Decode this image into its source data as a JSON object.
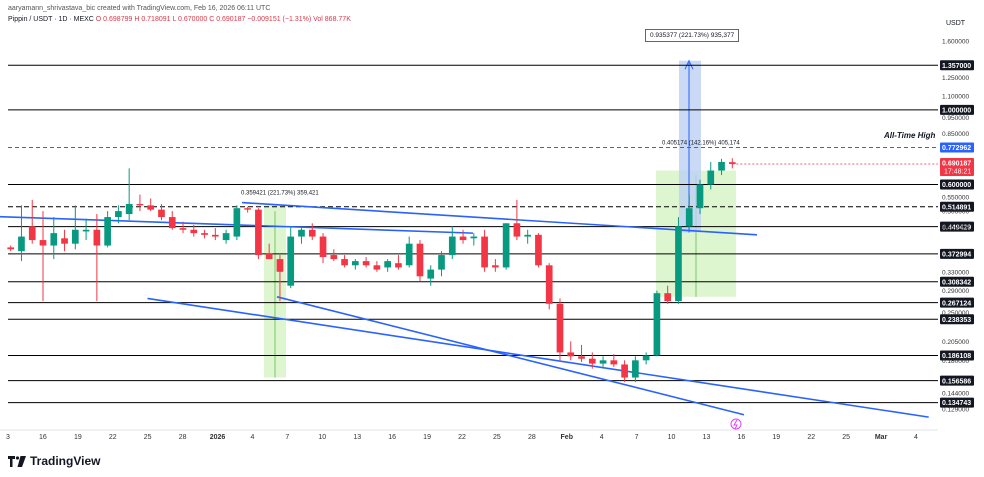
{
  "header": {
    "credit": "aaryamann_shrivastava_bic created with TradingView.com, Feb 16, 2026 06:11 UTC",
    "symbol": "Pippin / USDT · 1D · MEXC",
    "ohlc_text": "O 0.698799 H 0.718091 L 0.670000 C 0.690187 −0.009151 (−1.31%)",
    "volume_text": "Vol 868.77K"
  },
  "currency": "USDT",
  "brand": "TradingView",
  "annotations": {
    "all_time_high": "All-Time High",
    "measure_top": "0.935377 (221.73%) 935,377",
    "measure_mid": "0.405174 (142.16%) 405,174",
    "measure_left": "0.359421 (221.73%) 359,421"
  },
  "colors": {
    "up": "#089981",
    "down": "#f23645",
    "trendline": "#2962ff",
    "level": "#000000",
    "ath": "#2962ff",
    "current_price_bg": "#f23645",
    "zone": "#d8f5c8",
    "measure_fill": "#bbd0f4"
  },
  "chart_data": {
    "type": "candlestick",
    "y_scale": "log",
    "ylim": [
      0.118,
      1.8
    ],
    "y_tick_labels": [
      "1.600000",
      "1.250000",
      "1.100000",
      "0.950000",
      "0.850000",
      "0.550000",
      "0.500000",
      "0.450000",
      "0.330000",
      "0.290000",
      "0.250000",
      "0.205000",
      "0.180000",
      "0.144000",
      "0.129000"
    ],
    "horizontal_levels": [
      1.357,
      1.0,
      0.6,
      0.514891,
      0.449429,
      0.372994,
      0.308342,
      0.267124,
      0.238353,
      0.186108,
      0.156586,
      0.134743
    ],
    "dashed_levels": [
      0.514891
    ],
    "all_time_high": 0.772962,
    "current_price": 0.690187,
    "countdown": "17:48:21",
    "x_tick_labels": [
      "3",
      "16",
      "19",
      "22",
      "25",
      "28",
      "2026",
      "4",
      "7",
      "10",
      "13",
      "16",
      "19",
      "22",
      "25",
      "28",
      "Feb",
      "4",
      "7",
      "10",
      "13",
      "16",
      "19",
      "22",
      "25",
      "Mar",
      "4"
    ],
    "candles": [
      {
        "o": 0.39,
        "h": 0.395,
        "l": 0.38,
        "c": 0.385
      },
      {
        "o": 0.38,
        "h": 0.52,
        "l": 0.355,
        "c": 0.42
      },
      {
        "o": 0.45,
        "h": 0.54,
        "l": 0.4,
        "c": 0.41
      },
      {
        "o": 0.41,
        "h": 0.5,
        "l": 0.27,
        "c": 0.395
      },
      {
        "o": 0.395,
        "h": 0.48,
        "l": 0.36,
        "c": 0.43
      },
      {
        "o": 0.415,
        "h": 0.44,
        "l": 0.38,
        "c": 0.4
      },
      {
        "o": 0.4,
        "h": 0.52,
        "l": 0.385,
        "c": 0.44
      },
      {
        "o": 0.435,
        "h": 0.475,
        "l": 0.41,
        "c": 0.44
      },
      {
        "o": 0.44,
        "h": 0.49,
        "l": 0.27,
        "c": 0.395
      },
      {
        "o": 0.395,
        "h": 0.5,
        "l": 0.39,
        "c": 0.48
      },
      {
        "o": 0.48,
        "h": 0.52,
        "l": 0.46,
        "c": 0.5
      },
      {
        "o": 0.49,
        "h": 0.67,
        "l": 0.47,
        "c": 0.525
      },
      {
        "o": 0.525,
        "h": 0.56,
        "l": 0.5,
        "c": 0.52
      },
      {
        "o": 0.52,
        "h": 0.545,
        "l": 0.5,
        "c": 0.505
      },
      {
        "o": 0.505,
        "h": 0.525,
        "l": 0.47,
        "c": 0.48
      },
      {
        "o": 0.48,
        "h": 0.5,
        "l": 0.44,
        "c": 0.445
      },
      {
        "o": 0.445,
        "h": 0.465,
        "l": 0.43,
        "c": 0.44
      },
      {
        "o": 0.44,
        "h": 0.455,
        "l": 0.42,
        "c": 0.43
      },
      {
        "o": 0.43,
        "h": 0.44,
        "l": 0.415,
        "c": 0.425
      },
      {
        "o": 0.425,
        "h": 0.445,
        "l": 0.41,
        "c": 0.42
      },
      {
        "o": 0.41,
        "h": 0.44,
        "l": 0.4,
        "c": 0.43
      },
      {
        "o": 0.42,
        "h": 0.52,
        "l": 0.41,
        "c": 0.51
      },
      {
        "o": 0.51,
        "h": 0.515,
        "l": 0.495,
        "c": 0.505
      },
      {
        "o": 0.505,
        "h": 0.51,
        "l": 0.36,
        "c": 0.37
      },
      {
        "o": 0.375,
        "h": 0.4,
        "l": 0.36,
        "c": 0.36
      },
      {
        "o": 0.36,
        "h": 0.37,
        "l": 0.27,
        "c": 0.33
      },
      {
        "o": 0.3,
        "h": 0.45,
        "l": 0.295,
        "c": 0.42
      },
      {
        "o": 0.42,
        "h": 0.45,
        "l": 0.4,
        "c": 0.44
      },
      {
        "o": 0.44,
        "h": 0.46,
        "l": 0.41,
        "c": 0.42
      },
      {
        "o": 0.42,
        "h": 0.43,
        "l": 0.35,
        "c": 0.365
      },
      {
        "o": 0.37,
        "h": 0.385,
        "l": 0.355,
        "c": 0.36
      },
      {
        "o": 0.36,
        "h": 0.37,
        "l": 0.34,
        "c": 0.345
      },
      {
        "o": 0.345,
        "h": 0.36,
        "l": 0.335,
        "c": 0.355
      },
      {
        "o": 0.355,
        "h": 0.365,
        "l": 0.34,
        "c": 0.345
      },
      {
        "o": 0.345,
        "h": 0.355,
        "l": 0.33,
        "c": 0.335
      },
      {
        "o": 0.34,
        "h": 0.36,
        "l": 0.33,
        "c": 0.355
      },
      {
        "o": 0.35,
        "h": 0.37,
        "l": 0.335,
        "c": 0.34
      },
      {
        "o": 0.345,
        "h": 0.42,
        "l": 0.34,
        "c": 0.4
      },
      {
        "o": 0.4,
        "h": 0.41,
        "l": 0.31,
        "c": 0.32
      },
      {
        "o": 0.315,
        "h": 0.345,
        "l": 0.3,
        "c": 0.335
      },
      {
        "o": 0.335,
        "h": 0.38,
        "l": 0.32,
        "c": 0.37
      },
      {
        "o": 0.37,
        "h": 0.45,
        "l": 0.36,
        "c": 0.42
      },
      {
        "o": 0.42,
        "h": 0.44,
        "l": 0.4,
        "c": 0.41
      },
      {
        "o": 0.415,
        "h": 0.43,
        "l": 0.395,
        "c": 0.42
      },
      {
        "o": 0.42,
        "h": 0.44,
        "l": 0.33,
        "c": 0.34
      },
      {
        "o": 0.345,
        "h": 0.36,
        "l": 0.33,
        "c": 0.34
      },
      {
        "o": 0.34,
        "h": 0.46,
        "l": 0.335,
        "c": 0.46
      },
      {
        "o": 0.46,
        "h": 0.54,
        "l": 0.41,
        "c": 0.42
      },
      {
        "o": 0.42,
        "h": 0.44,
        "l": 0.4,
        "c": 0.425
      },
      {
        "o": 0.425,
        "h": 0.43,
        "l": 0.34,
        "c": 0.345
      },
      {
        "o": 0.345,
        "h": 0.35,
        "l": 0.255,
        "c": 0.265
      },
      {
        "o": 0.265,
        "h": 0.275,
        "l": 0.18,
        "c": 0.19
      },
      {
        "o": 0.19,
        "h": 0.205,
        "l": 0.18,
        "c": 0.185
      },
      {
        "o": 0.185,
        "h": 0.2,
        "l": 0.178,
        "c": 0.182
      },
      {
        "o": 0.182,
        "h": 0.19,
        "l": 0.17,
        "c": 0.176
      },
      {
        "o": 0.176,
        "h": 0.185,
        "l": 0.17,
        "c": 0.18
      },
      {
        "o": 0.18,
        "h": 0.188,
        "l": 0.172,
        "c": 0.175
      },
      {
        "o": 0.175,
        "h": 0.18,
        "l": 0.155,
        "c": 0.16
      },
      {
        "o": 0.16,
        "h": 0.185,
        "l": 0.155,
        "c": 0.18
      },
      {
        "o": 0.18,
        "h": 0.19,
        "l": 0.175,
        "c": 0.186
      },
      {
        "o": 0.186,
        "h": 0.29,
        "l": 0.185,
        "c": 0.285
      },
      {
        "o": 0.285,
        "h": 0.3,
        "l": 0.265,
        "c": 0.27
      },
      {
        "o": 0.27,
        "h": 0.48,
        "l": 0.265,
        "c": 0.45
      },
      {
        "o": 0.45,
        "h": 0.56,
        "l": 0.44,
        "c": 0.51
      },
      {
        "o": 0.51,
        "h": 0.62,
        "l": 0.49,
        "c": 0.6
      },
      {
        "o": 0.6,
        "h": 0.7,
        "l": 0.58,
        "c": 0.66
      },
      {
        "o": 0.66,
        "h": 0.715,
        "l": 0.64,
        "c": 0.7
      },
      {
        "o": 0.698799,
        "h": 0.718091,
        "l": 0.67,
        "c": 0.690187
      }
    ],
    "trendlines": [
      {
        "name": "upper",
        "x1": -0.4,
        "y1": 0.525,
        "x2": 0.5,
        "y2": 0.43
      },
      {
        "name": "lower",
        "x1": 0.15,
        "y1": 0.275,
        "x2": 0.99,
        "y2": 0.122
      }
    ]
  }
}
